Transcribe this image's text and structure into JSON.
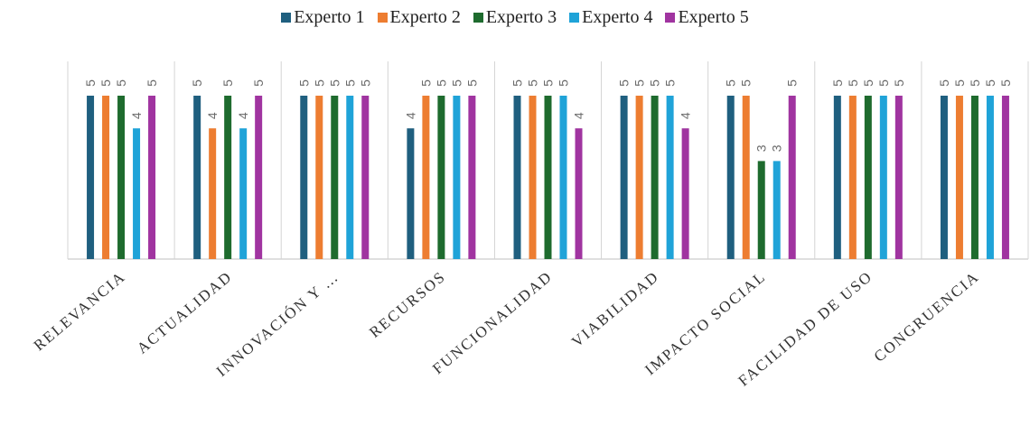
{
  "chart_data": {
    "type": "bar",
    "categories": [
      "RELEVANCIA",
      "ACTUALIDAD",
      "INNOVACIÓN Y …",
      "RECURSOS",
      "FUNCIONALIDAD",
      "VIABILIDAD",
      "IMPACTO SOCIAL",
      "FACILIDAD DE USO",
      "CONGRUENCIA"
    ],
    "series": [
      {
        "name": "Experto 1",
        "color": "#1f5f7f",
        "values": [
          5,
          5,
          5,
          4,
          5,
          5,
          5,
          5,
          5
        ]
      },
      {
        "name": "Experto 2",
        "color": "#ed7d31",
        "values": [
          5,
          4,
          5,
          5,
          5,
          5,
          5,
          5,
          5
        ]
      },
      {
        "name": "Experto 3",
        "color": "#1e6b2e",
        "values": [
          5,
          5,
          5,
          5,
          5,
          5,
          3,
          5,
          5
        ]
      },
      {
        "name": "Experto 4",
        "color": "#1fa3d8",
        "values": [
          4,
          4,
          5,
          5,
          5,
          5,
          3,
          5,
          5
        ]
      },
      {
        "name": "Experto 5",
        "color": "#a034a0",
        "values": [
          5,
          5,
          5,
          5,
          4,
          4,
          5,
          5,
          5
        ]
      }
    ],
    "ylim": [
      0,
      5
    ],
    "legend_position": "top",
    "grid": false,
    "data_labels": true
  }
}
